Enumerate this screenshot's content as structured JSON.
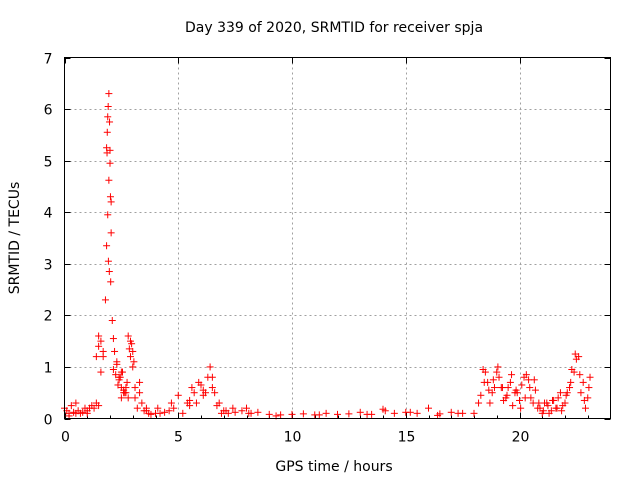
{
  "chart_data": {
    "type": "scatter",
    "title": "Day 339 of 2020, SRMTID for receiver spja",
    "xlabel": "GPS time / hours",
    "ylabel": "SRMTID / TECUs",
    "xlim": [
      0,
      24
    ],
    "ylim": [
      0,
      7
    ],
    "xticks": [
      0,
      5,
      10,
      15,
      20
    ],
    "yticks": [
      0,
      1,
      2,
      3,
      4,
      5,
      6,
      7
    ],
    "grid": true,
    "marker": "+",
    "color": "#ff0000",
    "series": [
      {
        "name": "SRMTID",
        "x": [
          0.0,
          0.1,
          0.2,
          0.3,
          0.4,
          0.5,
          0.6,
          0.7,
          0.8,
          0.9,
          1.0,
          1.1,
          1.2,
          1.3,
          1.4,
          1.5,
          1.6,
          1.7,
          1.8,
          1.85,
          1.9,
          1.95,
          2.0,
          2.05,
          2.1,
          2.15,
          2.2,
          2.3,
          2.4,
          2.5,
          2.6,
          2.7,
          2.8,
          2.9,
          3.0,
          3.1,
          3.2,
          3.3,
          3.4,
          3.5,
          3.6,
          3.7,
          3.8,
          4.0,
          4.2,
          4.4,
          4.6,
          4.8,
          5.0,
          5.2,
          5.4,
          5.6,
          5.8,
          6.0,
          6.2,
          6.4,
          6.6,
          6.8,
          7.0,
          7.2,
          7.5,
          7.8,
          8.0,
          8.2,
          8.5,
          9.0,
          9.5,
          10.0,
          10.5,
          11.0,
          11.5,
          12.0,
          12.5,
          13.0,
          13.5,
          14.0,
          14.5,
          15.0,
          15.5,
          16.0,
          16.5,
          17.0,
          17.5,
          18.0,
          18.2,
          18.4,
          18.6,
          18.8,
          19.0,
          19.2,
          19.4,
          19.6,
          19.8,
          20.0,
          20.2,
          20.4,
          20.6,
          20.8,
          21.0,
          21.2,
          21.4,
          21.6,
          21.8,
          22.0,
          22.2,
          22.4,
          22.6,
          22.8,
          23.0,
          1.85,
          1.88,
          1.9,
          1.92,
          1.95,
          1.98,
          2.0,
          2.02,
          2.05,
          1.87,
          1.93,
          1.97,
          2.03,
          1.4,
          1.5,
          1.6,
          1.7,
          2.3,
          2.4,
          2.5,
          2.6,
          2.7,
          2.8,
          2.9,
          3.0,
          3.1,
          0.2,
          0.5,
          1.0,
          1.5,
          2.5,
          3.3,
          3.6,
          4.1,
          4.7,
          5.5,
          6.1,
          6.5,
          7.4,
          8.1,
          9.3,
          11.2,
          13.3,
          14.1,
          15.2,
          16.4,
          17.3,
          18.3,
          18.5,
          18.7,
          18.9,
          19.1,
          19.3,
          19.5,
          19.7,
          19.9,
          20.1,
          20.3,
          20.5,
          20.7,
          20.9,
          21.1,
          21.3,
          21.5,
          21.7,
          21.9,
          22.1,
          22.3,
          22.5,
          22.7,
          22.9,
          23.1,
          18.45,
          18.65,
          18.85,
          19.05,
          19.25,
          19.45,
          19.65,
          19.85,
          20.05,
          20.25,
          20.45,
          20.65,
          20.85,
          21.05,
          21.25,
          21.45,
          21.65,
          21.85,
          22.05,
          22.25,
          22.45,
          22.65,
          22.85,
          23.05,
          2.15,
          2.25,
          2.35,
          2.45,
          2.55,
          2.65,
          2.75,
          2.85,
          2.95,
          3.05,
          5.5,
          5.7,
          5.9,
          6.1,
          6.3,
          6.5,
          6.7,
          6.9,
          7.1
        ],
        "y": [
          0.2,
          0.15,
          0.1,
          0.25,
          0.12,
          0.1,
          0.15,
          0.1,
          0.12,
          0.2,
          0.15,
          0.2,
          0.25,
          0.2,
          0.3,
          1.6,
          0.9,
          1.2,
          2.3,
          3.35,
          3.95,
          4.62,
          5.2,
          4.2,
          1.9,
          1.55,
          1.3,
          1.05,
          0.75,
          0.6,
          0.55,
          0.5,
          0.4,
          1.5,
          1.3,
          0.4,
          0.2,
          0.7,
          0.3,
          0.15,
          0.2,
          0.1,
          0.08,
          0.1,
          0.1,
          0.12,
          0.15,
          0.2,
          0.45,
          0.1,
          0.3,
          0.6,
          0.3,
          0.65,
          0.5,
          1.0,
          0.5,
          0.3,
          0.15,
          0.1,
          0.12,
          0.15,
          0.2,
          0.1,
          0.12,
          0.08,
          0.07,
          0.08,
          0.09,
          0.07,
          0.1,
          0.08,
          0.09,
          0.12,
          0.08,
          0.18,
          0.1,
          0.12,
          0.1,
          0.2,
          0.09,
          0.12,
          0.1,
          0.1,
          0.3,
          0.95,
          0.7,
          0.5,
          0.9,
          0.6,
          0.4,
          0.7,
          0.5,
          0.35,
          0.8,
          0.75,
          0.3,
          0.2,
          0.1,
          0.3,
          0.15,
          0.2,
          0.5,
          0.3,
          0.6,
          0.9,
          1.2,
          0.7,
          0.4,
          5.25,
          5.55,
          5.85,
          6.05,
          6.3,
          5.75,
          4.95,
          4.3,
          3.6,
          5.15,
          3.05,
          2.85,
          2.65,
          1.2,
          1.4,
          1.5,
          1.3,
          1.1,
          0.8,
          0.9,
          0.5,
          0.6,
          1.6,
          1.2,
          1.0,
          0.6,
          0.05,
          0.3,
          0.1,
          0.25,
          0.4,
          0.5,
          0.15,
          0.2,
          0.3,
          0.25,
          0.45,
          0.8,
          0.2,
          0.1,
          0.05,
          0.07,
          0.08,
          0.15,
          0.12,
          0.06,
          0.1,
          0.45,
          0.9,
          0.3,
          0.6,
          0.8,
          0.35,
          0.6,
          0.25,
          0.5,
          0.65,
          0.85,
          0.4,
          0.55,
          0.2,
          0.3,
          0.1,
          0.35,
          0.4,
          0.25,
          0.5,
          0.95,
          1.15,
          0.5,
          0.2,
          0.8,
          0.7,
          0.55,
          0.75,
          1.0,
          0.6,
          0.45,
          0.85,
          0.55,
          0.2,
          0.4,
          0.6,
          0.75,
          0.3,
          0.15,
          0.25,
          0.35,
          0.2,
          0.15,
          0.45,
          0.7,
          1.25,
          0.85,
          0.35,
          0.6,
          0.95,
          0.85,
          0.65,
          0.8,
          0.9,
          0.5,
          0.7,
          1.35,
          1.45,
          1.1,
          0.35,
          0.5,
          0.7,
          0.55,
          0.8,
          0.6,
          0.25,
          0.1,
          0.15
        ]
      }
    ]
  }
}
